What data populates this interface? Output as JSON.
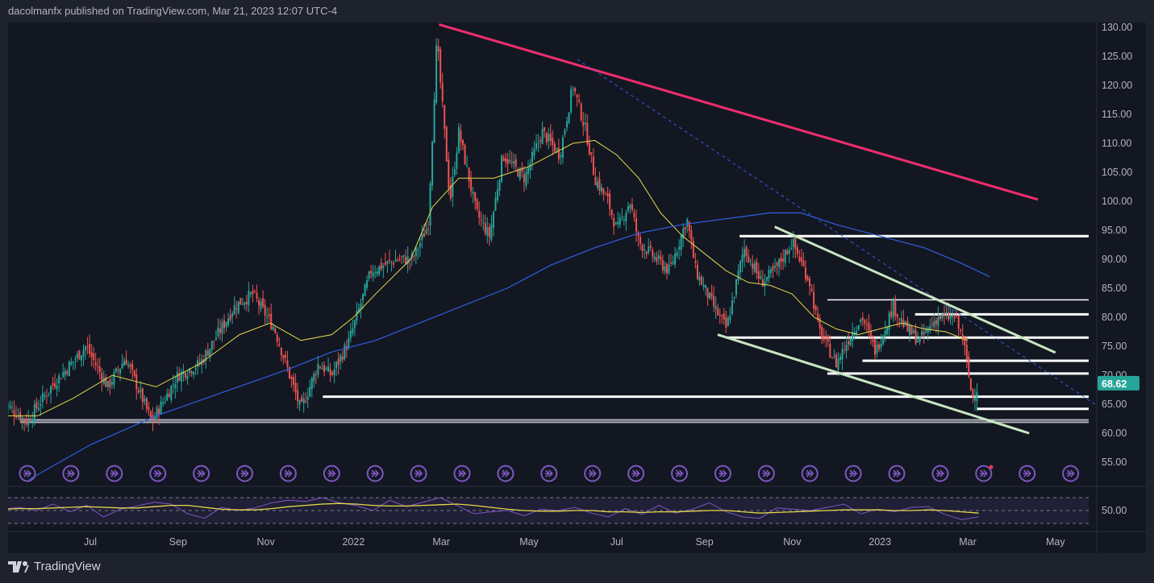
{
  "header": "dacolmanfx published on TradingView.com, Mar 21, 2023 12:07 UTC-4",
  "logo_text": "TradingView",
  "colors": {
    "up": "#26a69a",
    "down": "#ef5350",
    "sma50": "#e5d84a",
    "sma200": "#2f5ee0",
    "trend": "#f02d6e",
    "channel": "#c8e6c0",
    "level": "#ffffff",
    "rsi": "#7e57c2",
    "panel": "#131722",
    "price_badge": "#26a69a"
  },
  "chart_data": {
    "type": "candlestick",
    "last_price": "68.62",
    "ylim": [
      52,
      131
    ],
    "y_ticks": [
      "130.00",
      "125.00",
      "120.00",
      "115.00",
      "110.00",
      "105.00",
      "100.00",
      "95.00",
      "90.00",
      "85.00",
      "80.00",
      "75.00",
      "70.00",
      "65.00",
      "60.00",
      "55.00"
    ],
    "x_ticks": [
      "Jul",
      "Sep",
      "Nov",
      "2022",
      "Mar",
      "May",
      "Jul",
      "Sep",
      "Nov",
      "2023",
      "Mar",
      "May"
    ],
    "x_tick_months": [
      2,
      4,
      6,
      8,
      10,
      12,
      14,
      16,
      18,
      20,
      22,
      24
    ],
    "price_path": [
      [
        0,
        65.5
      ],
      [
        0.55,
        62
      ],
      [
        1.1,
        68
      ],
      [
        1.9,
        75
      ],
      [
        2.4,
        68
      ],
      [
        2.8,
        73
      ],
      [
        3.4,
        62
      ],
      [
        4,
        70
      ],
      [
        4.5,
        72
      ],
      [
        5.3,
        82
      ],
      [
        5.7,
        84
      ],
      [
        6.2,
        78
      ],
      [
        6.8,
        64
      ],
      [
        7.2,
        72
      ],
      [
        7.5,
        70
      ],
      [
        7.9,
        76
      ],
      [
        8.4,
        88
      ],
      [
        9,
        90
      ],
      [
        9.35,
        90
      ],
      [
        9.7,
        96
      ],
      [
        9.9,
        128
      ],
      [
        10.2,
        100
      ],
      [
        10.4,
        112
      ],
      [
        10.8,
        98
      ],
      [
        11.1,
        94
      ],
      [
        11.4,
        108
      ],
      [
        11.9,
        104
      ],
      [
        12.3,
        112
      ],
      [
        12.7,
        108
      ],
      [
        13,
        120
      ],
      [
        13.3,
        112
      ],
      [
        13.5,
        104
      ],
      [
        13.8,
        100
      ],
      [
        14,
        95
      ],
      [
        14.3,
        100
      ],
      [
        14.5,
        93
      ],
      [
        14.9,
        90
      ],
      [
        15.2,
        88
      ],
      [
        15.6,
        97
      ],
      [
        15.8,
        88
      ],
      [
        16.2,
        82
      ],
      [
        16.5,
        78
      ],
      [
        16.9,
        92
      ],
      [
        17.3,
        86
      ],
      [
        17.6,
        88
      ],
      [
        18,
        93
      ],
      [
        18.4,
        86
      ],
      [
        18.6,
        78
      ],
      [
        19,
        72
      ],
      [
        19.4,
        78
      ],
      [
        19.6,
        80
      ],
      [
        19.9,
        74
      ],
      [
        20.3,
        82
      ],
      [
        20.6,
        78
      ],
      [
        20.9,
        76
      ],
      [
        21.3,
        80
      ],
      [
        21.7,
        80
      ],
      [
        21.9,
        76
      ],
      [
        22.1,
        66
      ],
      [
        22.25,
        68.62
      ]
    ],
    "sma50": [
      [
        0,
        63
      ],
      [
        0.8,
        63
      ],
      [
        1.6,
        66
      ],
      [
        2.5,
        70
      ],
      [
        3.5,
        68
      ],
      [
        4.5,
        72
      ],
      [
        5.4,
        77
      ],
      [
        6.1,
        79
      ],
      [
        6.8,
        76
      ],
      [
        7.5,
        77
      ],
      [
        8,
        80
      ],
      [
        8.5,
        84
      ],
      [
        9.3,
        90
      ],
      [
        9.8,
        99
      ],
      [
        10.4,
        104
      ],
      [
        11.2,
        104
      ],
      [
        12,
        106
      ],
      [
        12.5,
        108
      ],
      [
        13,
        110
      ],
      [
        13.5,
        110.5
      ],
      [
        14,
        108
      ],
      [
        14.5,
        104
      ],
      [
        15,
        98
      ],
      [
        15.5,
        94
      ],
      [
        16,
        91
      ],
      [
        16.5,
        88
      ],
      [
        17,
        86
      ],
      [
        17.5,
        85.5
      ],
      [
        18,
        84
      ],
      [
        18.5,
        80
      ],
      [
        19,
        78
      ],
      [
        19.5,
        77
      ],
      [
        20,
        78
      ],
      [
        20.5,
        79
      ],
      [
        21,
        78
      ],
      [
        21.5,
        77.5
      ],
      [
        22,
        76
      ]
    ],
    "sma200": [
      [
        0.6,
        52
      ],
      [
        2,
        58
      ],
      [
        3.5,
        63
      ],
      [
        5,
        67
      ],
      [
        6.5,
        71
      ],
      [
        7.5,
        74
      ],
      [
        8.5,
        76
      ],
      [
        9.5,
        79
      ],
      [
        10.5,
        82
      ],
      [
        11.5,
        85
      ],
      [
        12.5,
        89
      ],
      [
        13.5,
        92
      ],
      [
        14.5,
        94.5
      ],
      [
        15.5,
        96
      ],
      [
        16.5,
        97
      ],
      [
        17.5,
        98
      ],
      [
        18.2,
        98
      ],
      [
        19,
        96
      ],
      [
        20,
        94
      ],
      [
        21,
        92
      ],
      [
        21.8,
        89.5
      ],
      [
        22.5,
        87
      ]
    ],
    "trendline": [
      [
        9.95,
        130.5
      ],
      [
        23.6,
        100.3
      ]
    ],
    "dotted_trend": [
      [
        13.1,
        124.5
      ],
      [
        24.9,
        65
      ]
    ],
    "channel_upper": [
      [
        17.6,
        95.6
      ],
      [
        24,
        73.9
      ]
    ],
    "channel_lower": [
      [
        16.3,
        77
      ],
      [
        23.4,
        60
      ]
    ],
    "levels": [
      [
        16.8,
        94
      ],
      [
        18.8,
        83
      ],
      [
        20.8,
        80.5
      ],
      [
        16.5,
        76.5
      ],
      [
        19.6,
        72.5
      ],
      [
        18.8,
        70.3
      ],
      [
        7.3,
        66.3
      ],
      [
        22.2,
        64.2
      ],
      [
        0.4,
        62.3
      ],
      [
        0.4,
        61.9
      ]
    ],
    "rsi_axis_tick": "50.00",
    "rsi": [
      52,
      55,
      50,
      60,
      48,
      58,
      40,
      52,
      57,
      63,
      60,
      45,
      38,
      55,
      50,
      54,
      62,
      66,
      64,
      70,
      62,
      58,
      50,
      66,
      56,
      63,
      70,
      58,
      45,
      48,
      50,
      42,
      52,
      50,
      55,
      46,
      40,
      53,
      44,
      58,
      46,
      52,
      62,
      48,
      40,
      38,
      54,
      52,
      50,
      55,
      60,
      45,
      52,
      48,
      55,
      56,
      44,
      36,
      40
    ],
    "rsi_signal": [
      52,
      53,
      53,
      54,
      55,
      56,
      55,
      54,
      54,
      56,
      58,
      58,
      55,
      52,
      51,
      51,
      53,
      56,
      58,
      60,
      61,
      60,
      58,
      57,
      57,
      58,
      59,
      60,
      58,
      55,
      52,
      50,
      49,
      49,
      50,
      50,
      48,
      48,
      47,
      48,
      48,
      49,
      50,
      50,
      48,
      46,
      47,
      48,
      49,
      50,
      51,
      51,
      51,
      50,
      50,
      51,
      50,
      48,
      46
    ]
  }
}
